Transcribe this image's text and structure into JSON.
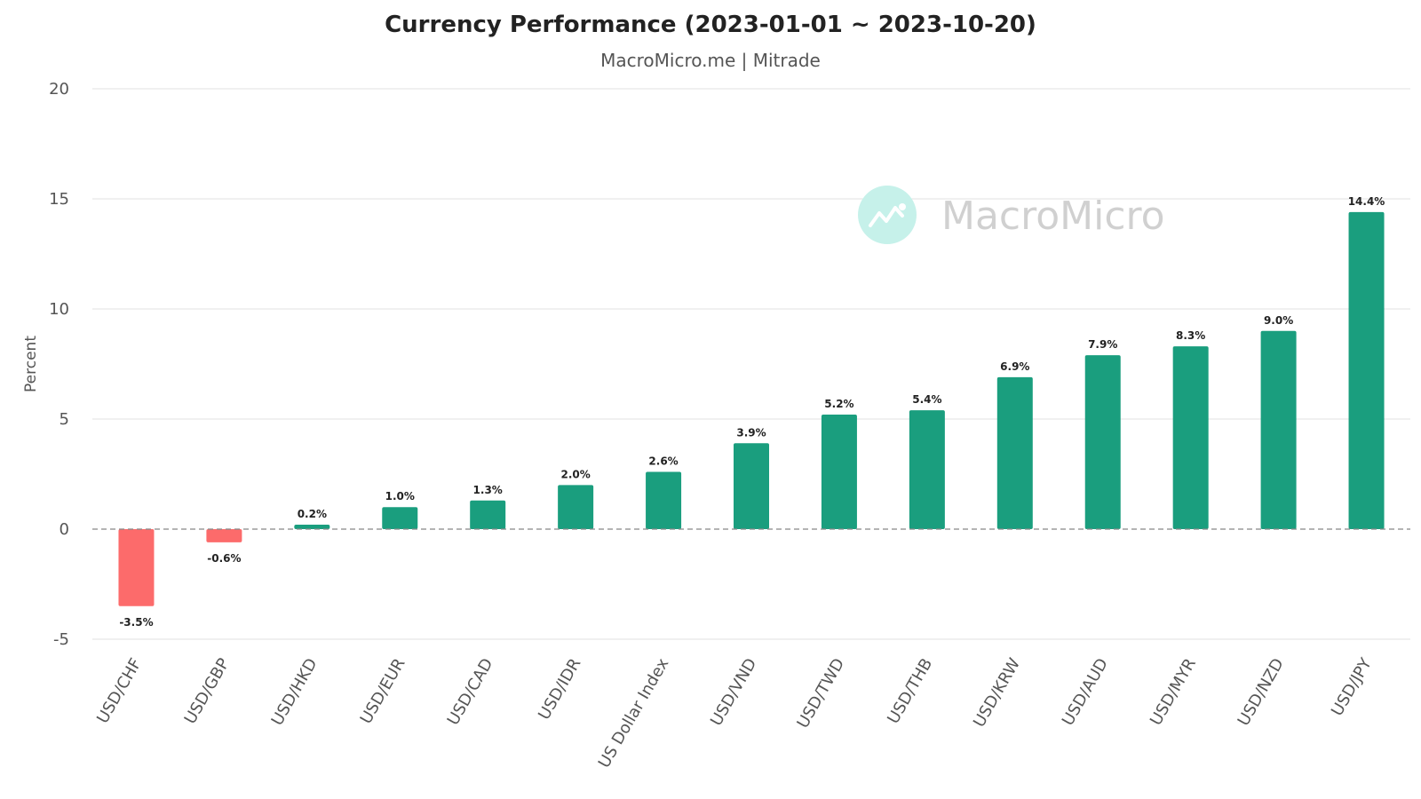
{
  "chart_data": {
    "type": "bar",
    "title": "Currency Performance (2023-01-01 ~ 2023-10-20)",
    "subtitle": "MacroMicro.me | Mitrade",
    "ylabel": "Percent",
    "xlabel": "",
    "ylim": [
      -5,
      20
    ],
    "yticks": [
      "20",
      "15",
      "10",
      "5",
      "0",
      "-5"
    ],
    "ytick_values": [
      20,
      15,
      10,
      5,
      0,
      -5
    ],
    "grid": true,
    "legend": "none",
    "categories": [
      "USD/CHF",
      "USD/GBP",
      "USD/HKD",
      "USD/EUR",
      "USD/CAD",
      "USD/IDR",
      "US Dollar Index",
      "USD/VND",
      "USD/TWD",
      "USD/THB",
      "USD/KRW",
      "USD/AUD",
      "USD/MYR",
      "USD/NZD",
      "USD/JPY"
    ],
    "values": [
      -3.5,
      -0.6,
      0.2,
      1.0,
      1.3,
      2.0,
      2.6,
      3.9,
      5.2,
      5.4,
      6.9,
      7.9,
      8.3,
      9.0,
      14.4
    ],
    "data_labels": [
      "-3.5%",
      "-0.6%",
      "0.2%",
      "1.0%",
      "1.3%",
      "2.0%",
      "2.6%",
      "3.9%",
      "5.2%",
      "5.4%",
      "6.9%",
      "7.9%",
      "8.3%",
      "9.0%",
      "14.4%"
    ],
    "positive_color": "#1a9e7e",
    "negative_color": "#fc6b6b"
  },
  "watermark": {
    "text": "MacroMicro",
    "icon": "chart-trend-icon",
    "circle_color": "#c6f1ea"
  }
}
